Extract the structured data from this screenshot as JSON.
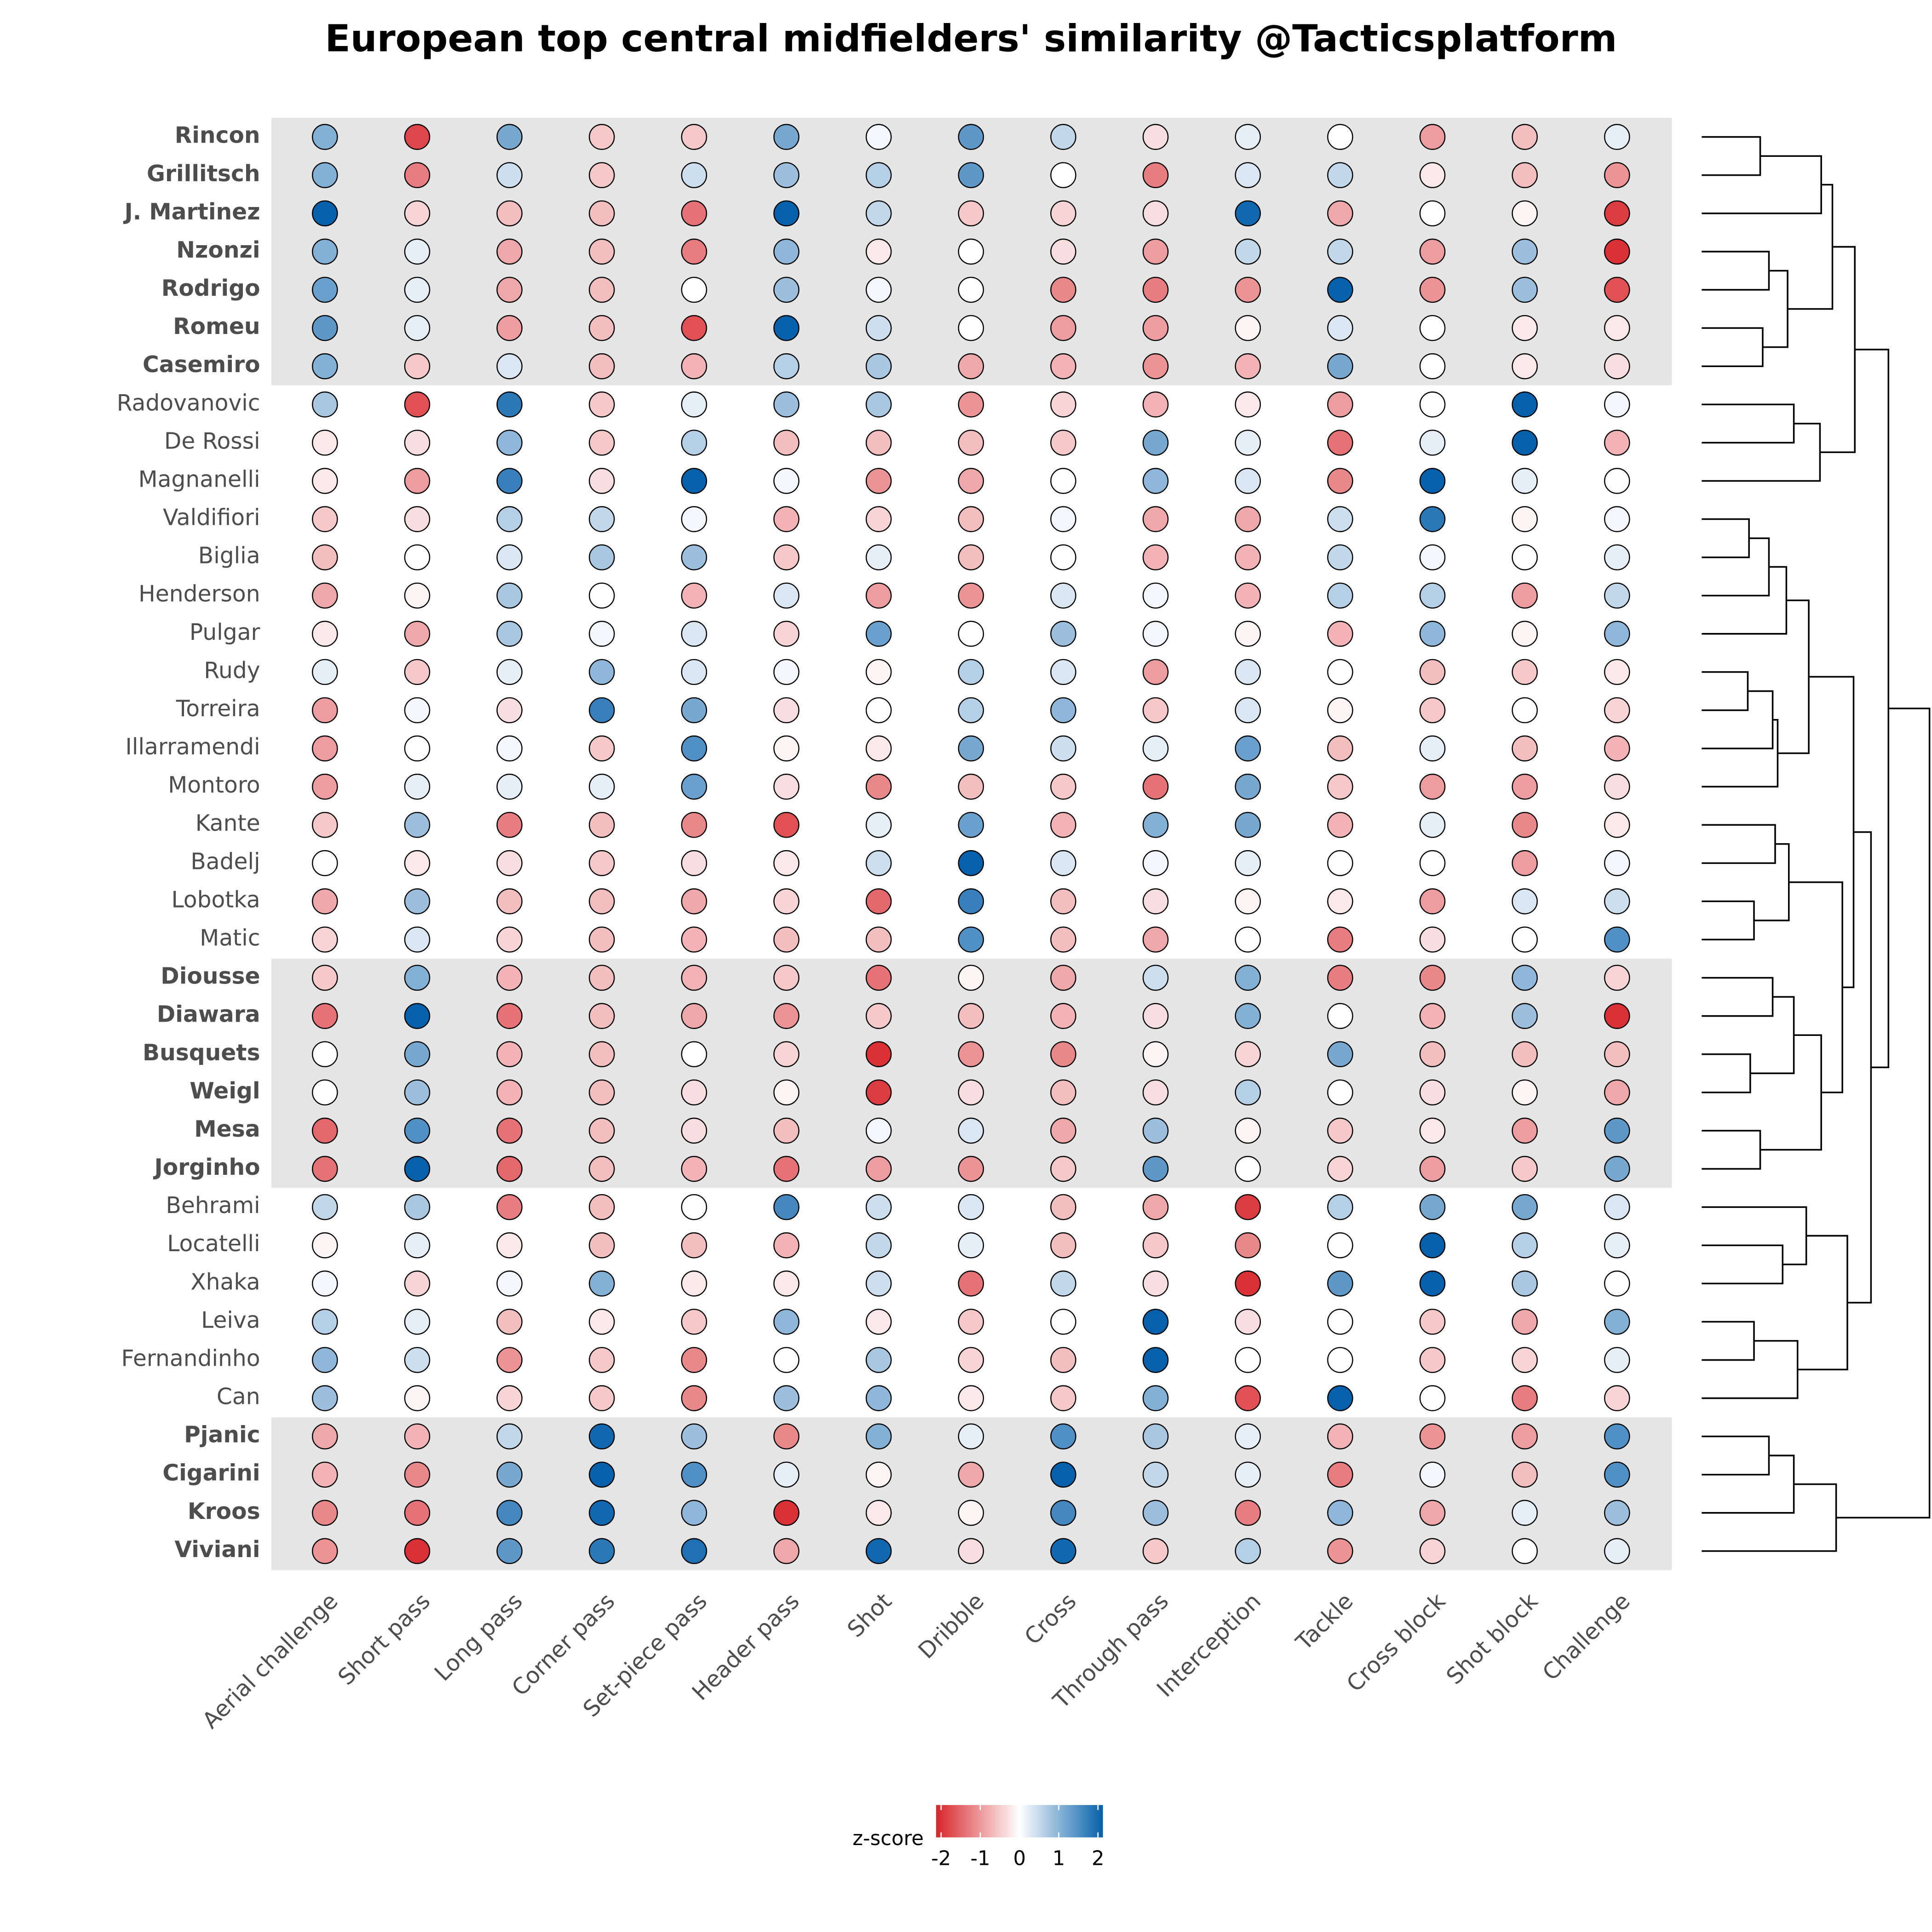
{
  "chart_data": {
    "type": "dotmatrix",
    "title": "European top central midfielders' similarity @Tacticsplatform",
    "rows": [
      "Rincon",
      "Grillitsch",
      "J. Martinez",
      "Nzonzi",
      "Rodrigo",
      "Romeu",
      "Casemiro",
      "Radovanovic",
      "De Rossi",
      "Magnanelli",
      "Valdifiori",
      "Biglia",
      "Henderson",
      "Pulgar",
      "Rudy",
      "Torreira",
      "Illarramendi",
      "Montoro",
      "Kante",
      "Badelj",
      "Lobotka",
      "Matic",
      "Diousse",
      "Diawara",
      "Busquets",
      "Weigl",
      "Mesa",
      "Jorginho",
      "Behrami",
      "Locatelli",
      "Xhaka",
      "Leiva",
      "Fernandinho",
      "Can",
      "Pjanic",
      "Cigarini",
      "Kroos",
      "Viviani"
    ],
    "categories": [
      "Aerial challenge",
      "Short pass",
      "Long pass",
      "Corner pass",
      "Set-piece pass",
      "Header pass",
      "Shot",
      "Dribble",
      "Cross",
      "Through pass",
      "Interception",
      "Tackle",
      "Cross block",
      "Shot block",
      "Challenge"
    ],
    "highlighted_groups": [
      [
        0,
        6
      ],
      [
        22,
        27
      ],
      [
        34,
        37
      ]
    ],
    "values": [
      [
        1.0,
        -1.7,
        1.1,
        -0.5,
        -0.5,
        1.1,
        0.1,
        1.3,
        0.5,
        -0.3,
        0.2,
        0,
        -0.9,
        -0.6,
        0.2
      ],
      [
        1.0,
        -1.2,
        0.4,
        -0.5,
        0.4,
        0.8,
        0.6,
        1.3,
        0,
        -1.2,
        0.3,
        0.5,
        -0.2,
        -0.6,
        -1.0
      ],
      [
        2.0,
        -0.4,
        -0.6,
        -0.6,
        -1.3,
        2.0,
        0.5,
        -0.5,
        -0.4,
        -0.3,
        1.9,
        -0.8,
        0,
        -0.1,
        -1.8
      ],
      [
        1.0,
        0.2,
        -0.8,
        -0.6,
        -1.2,
        0.9,
        -0.2,
        0,
        -0.3,
        -0.9,
        0.5,
        0.5,
        -0.9,
        0.8,
        -1.9
      ],
      [
        1.2,
        0.2,
        -0.8,
        -0.6,
        0,
        0.8,
        0.1,
        0,
        -1.1,
        -1.2,
        -1.0,
        2.0,
        -1.0,
        0.8,
        -1.6
      ],
      [
        1.3,
        0.2,
        -0.9,
        -0.6,
        -1.6,
        2.0,
        0.4,
        0,
        -0.9,
        -0.9,
        -0.1,
        0.3,
        0,
        -0.2,
        -0.2
      ],
      [
        1.0,
        -0.5,
        0.3,
        -0.6,
        -0.7,
        0.6,
        0.7,
        -0.8,
        -0.7,
        -1.0,
        -0.7,
        1.1,
        0,
        -0.2,
        -0.3
      ],
      [
        0.7,
        -1.6,
        1.7,
        -0.5,
        0.2,
        0.8,
        0.7,
        -1.0,
        -0.4,
        -0.7,
        -0.2,
        -0.9,
        0,
        2.0,
        0.1
      ],
      [
        -0.2,
        -0.3,
        0.9,
        -0.5,
        0.6,
        -0.6,
        -0.6,
        -0.6,
        -0.5,
        1.1,
        0.2,
        -1.3,
        0.2,
        2.0,
        -0.7
      ],
      [
        -0.2,
        -0.9,
        1.6,
        -0.3,
        2.0,
        0.1,
        -1.0,
        -0.8,
        0,
        0.9,
        0.3,
        -1.1,
        2.0,
        0.2,
        0
      ],
      [
        -0.5,
        -0.3,
        0.6,
        0.5,
        0.1,
        -0.7,
        -0.4,
        -0.6,
        0.1,
        -0.8,
        -0.8,
        0.4,
        1.7,
        -0.1,
        0.1
      ],
      [
        -0.6,
        0,
        0.3,
        0.7,
        0.8,
        -0.5,
        0.2,
        -0.6,
        0,
        -0.7,
        -0.7,
        0.5,
        0.1,
        0,
        0.2
      ],
      [
        -0.8,
        -0.1,
        0.7,
        0,
        -0.7,
        0.3,
        -0.9,
        -1.0,
        0.3,
        0.1,
        -0.7,
        0.6,
        0.6,
        -0.9,
        0.5
      ],
      [
        -0.2,
        -0.8,
        0.7,
        0.1,
        0.3,
        -0.4,
        1.2,
        0,
        0.8,
        0.1,
        -0.1,
        -0.7,
        0.9,
        -0.1,
        0.9
      ],
      [
        0.2,
        -0.5,
        0.2,
        0.9,
        0.3,
        0.1,
        -0.1,
        0.6,
        0.3,
        -0.9,
        0.3,
        0,
        -0.6,
        -0.5,
        -0.2
      ],
      [
        -0.9,
        0.1,
        -0.3,
        1.6,
        1.1,
        -0.3,
        0,
        0.6,
        0.9,
        -0.5,
        0.3,
        -0.1,
        -0.5,
        0,
        -0.4
      ],
      [
        -0.9,
        0,
        0.1,
        -0.5,
        1.4,
        -0.1,
        -0.2,
        1.1,
        0.4,
        0.2,
        1.2,
        -0.6,
        0.2,
        -0.6,
        -0.7
      ],
      [
        -0.9,
        0.2,
        0.2,
        0.2,
        1.2,
        -0.3,
        -1.1,
        -0.6,
        -0.5,
        -1.3,
        1.1,
        -0.5,
        -0.9,
        -0.9,
        -0.3
      ],
      [
        -0.5,
        0.8,
        -1.2,
        -0.6,
        -1.1,
        -1.6,
        0.2,
        1.2,
        -0.7,
        1.0,
        1.1,
        -0.7,
        0.2,
        -1.1,
        -0.2
      ],
      [
        0,
        -0.2,
        -0.3,
        -0.5,
        -0.3,
        -0.2,
        0.4,
        2.0,
        0.3,
        0.1,
        0.2,
        0,
        0,
        -0.9,
        0.1
      ],
      [
        -0.8,
        0.8,
        -0.6,
        -0.6,
        -0.8,
        -0.4,
        -1.4,
        1.6,
        -0.6,
        -0.3,
        -0.1,
        -0.2,
        -0.9,
        0.3,
        0.4
      ],
      [
        -0.4,
        0.3,
        -0.4,
        -0.6,
        -0.7,
        -0.6,
        -0.6,
        1.4,
        -0.6,
        -0.8,
        0,
        -1.2,
        -0.3,
        0,
        1.4
      ],
      [
        -0.5,
        1.0,
        -0.7,
        -0.6,
        -0.7,
        -0.5,
        -1.3,
        -0.1,
        -0.8,
        0.4,
        1.0,
        -1.2,
        -1.1,
        0.9,
        -0.4
      ],
      [
        -1.3,
        2.0,
        -1.3,
        -0.6,
        -0.8,
        -1.0,
        -0.5,
        -0.6,
        -0.7,
        -0.3,
        1.0,
        0,
        -0.7,
        0.8,
        -1.9
      ],
      [
        0,
        1.1,
        -0.7,
        -0.6,
        0,
        -0.4,
        -1.9,
        -1.0,
        -1.1,
        -0.1,
        -0.4,
        1.1,
        -0.6,
        -0.6,
        -0.6
      ],
      [
        0,
        0.8,
        -0.7,
        -0.6,
        -0.3,
        -0.1,
        -1.8,
        -0.3,
        -0.6,
        -0.3,
        0.6,
        0,
        -0.3,
        -0.1,
        -0.8
      ],
      [
        -1.4,
        1.4,
        -1.3,
        -0.6,
        -0.3,
        -0.6,
        0.1,
        0.3,
        -0.8,
        0.8,
        -0.1,
        -0.5,
        -0.2,
        -0.9,
        1.3
      ],
      [
        -1.3,
        2.0,
        -1.4,
        -0.6,
        -0.7,
        -1.3,
        -0.9,
        -1.0,
        -0.5,
        1.3,
        0,
        -0.4,
        -0.9,
        -0.5,
        1.1
      ],
      [
        0.5,
        0.7,
        -1.2,
        -0.6,
        0,
        1.5,
        0.4,
        0.3,
        -0.6,
        -0.8,
        -1.8,
        0.6,
        1.1,
        1.1,
        0.3
      ],
      [
        -0.1,
        0.2,
        -0.2,
        -0.6,
        -0.6,
        -0.7,
        0.5,
        0.2,
        -0.6,
        -0.5,
        -1.1,
        0,
        2.0,
        0.6,
        0.2
      ],
      [
        0.1,
        -0.4,
        0.1,
        1.0,
        -0.2,
        -0.2,
        0.4,
        -1.3,
        0.5,
        -0.3,
        -1.9,
        1.3,
        2.0,
        0.7,
        0
      ],
      [
        0.6,
        0.2,
        -0.6,
        -0.2,
        -0.5,
        0.9,
        -0.2,
        -0.5,
        0,
        2.0,
        -0.3,
        0,
        -0.5,
        -0.8,
        1.0
      ],
      [
        0.9,
        0.4,
        -1.0,
        -0.5,
        -1.1,
        0,
        0.7,
        -0.4,
        -0.6,
        2.0,
        0,
        0,
        -0.5,
        -0.4,
        0.2
      ],
      [
        0.8,
        -0.1,
        -0.4,
        -0.5,
        -1.1,
        0.8,
        0.9,
        -0.2,
        -0.5,
        1.0,
        -1.6,
        2.0,
        0,
        -1.2,
        -0.4
      ],
      [
        -0.8,
        -0.7,
        0.5,
        1.9,
        0.8,
        -1.1,
        1.0,
        0.2,
        1.4,
        0.7,
        0.2,
        -0.7,
        -1.0,
        -0.9,
        1.4
      ],
      [
        -0.7,
        -1.1,
        1.1,
        2.0,
        1.4,
        0.2,
        -0.1,
        -0.8,
        2.0,
        0.5,
        0.2,
        -1.2,
        0.1,
        -0.6,
        1.4
      ],
      [
        -1.1,
        -1.3,
        1.5,
        1.9,
        0.9,
        -1.9,
        -0.2,
        -0.1,
        1.5,
        0.8,
        -1.2,
        0.9,
        -0.8,
        0.2,
        0.8
      ],
      [
        -1.0,
        -1.9,
        1.3,
        1.7,
        1.8,
        -0.8,
        1.9,
        -0.3,
        1.9,
        -0.5,
        0.6,
        -1.0,
        -0.4,
        0,
        0.2
      ]
    ],
    "colorscale": {
      "low": "#d7262b",
      "mid": "#ffffff",
      "high": "#0660aa"
    },
    "clim": [
      -2,
      2
    ],
    "colorbar_title": "z-score",
    "colorbar_ticks": [
      -2,
      -1,
      0,
      1,
      2
    ]
  }
}
